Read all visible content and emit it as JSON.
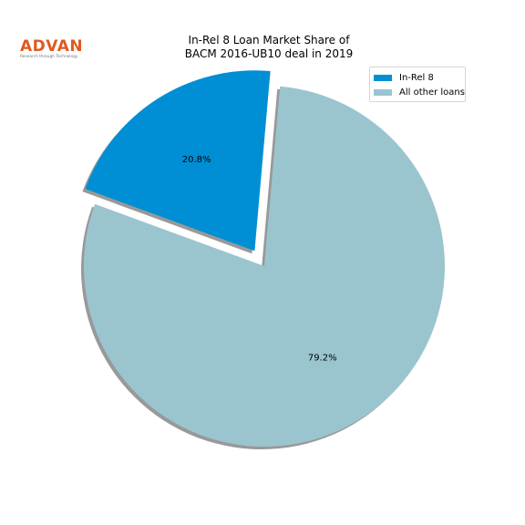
{
  "logo": {
    "text": "ADVAN",
    "tagline": "Research through Technology",
    "color": "#E05A1E"
  },
  "chart_data": {
    "type": "pie",
    "title": "In-Rel 8 Loan Market Share of\nBACM 2016-UB10 deal in 2019",
    "slices": [
      {
        "label": "In-Rel 8",
        "value": 20.8,
        "pct_label": "20.8%",
        "color": "#008FD5",
        "exploded": true
      },
      {
        "label": "All other loans",
        "value": 79.2,
        "pct_label": "79.2%",
        "color": "#9AC5CF",
        "exploded": false
      }
    ],
    "start_angle_deg": 85,
    "shadow": true,
    "legend_position": "top-right"
  }
}
